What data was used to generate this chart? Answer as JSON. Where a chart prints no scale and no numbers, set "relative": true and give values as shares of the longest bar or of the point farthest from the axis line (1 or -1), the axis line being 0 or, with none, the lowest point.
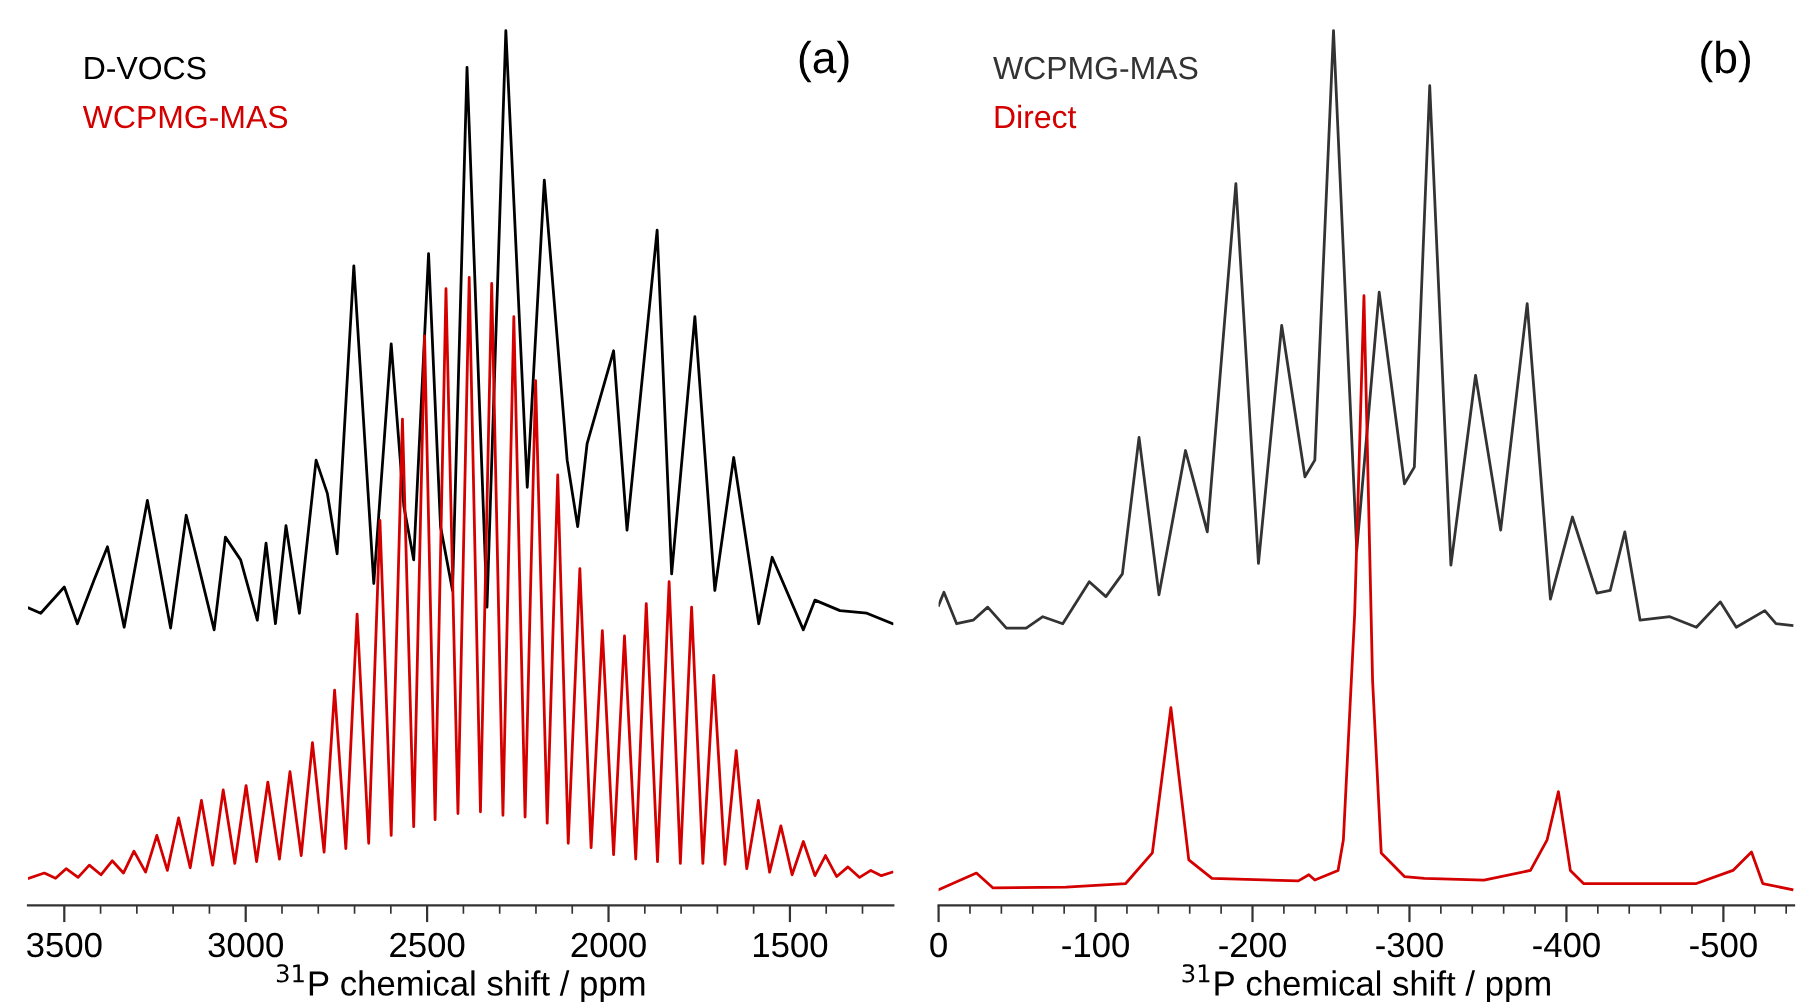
{
  "chart_data": [
    {
      "type": "line",
      "title": "(a)",
      "xlabel": "$^{31}$P chemical shift / ppm",
      "relative": true,
      "legend": "top left",
      "tick_labels": "x",
      "grid": false,
      "marker": "none",
      "line_style": "solid",
      "xlim": [
        3600,
        1215
      ],
      "xticks": [
        3500,
        {
          "value": 3400,
          "label": null
        },
        {
          "value": 3300,
          "label": null
        },
        {
          "value": 3200,
          "label": null
        },
        {
          "value": 3100,
          "label": null
        },
        3000,
        {
          "value": 2900,
          "label": null
        },
        {
          "value": 2800,
          "label": null
        },
        {
          "value": 2700,
          "label": null
        },
        {
          "value": 2600,
          "label": null
        },
        2500,
        {
          "value": 2400,
          "label": null
        },
        {
          "value": 2300,
          "label": null
        },
        {
          "value": 2200,
          "label": null
        },
        {
          "value": 2100,
          "label": null
        },
        2000,
        {
          "value": 1900,
          "label": null
        },
        {
          "value": 1800,
          "label": null
        },
        {
          "value": 1700,
          "label": null
        },
        {
          "value": 1600,
          "label": null
        },
        1500,
        {
          "value": 1400,
          "label": null
        },
        {
          "value": 1300,
          "label": null
        }
      ],
      "series": [
        {
          "name": "D-VOCS",
          "color": "#000000",
          "x": [
            3598,
            3565,
            3500,
            3464,
            3418,
            3381,
            3335,
            3271,
            3207,
            3164,
            3087,
            3056,
            3014,
            2968,
            2944,
            2918,
            2889,
            2852,
            2806,
            2775,
            2748,
            2702,
            2647,
            2599,
            2564,
            2537,
            2496,
            2463,
            2430,
            2390,
            2335,
            2283,
            2224,
            2177,
            2114,
            2085,
            2059,
            1986,
            1949,
            1866,
            1826,
            1762,
            1707,
            1655,
            1586,
            1549,
            1463,
            1431,
            1362,
            1288,
            1217
          ],
          "values": [
            0.34,
            0.334,
            0.364,
            0.322,
            0.372,
            0.41,
            0.318,
            0.463,
            0.317,
            0.446,
            0.315,
            0.421,
            0.395,
            0.326,
            0.414,
            0.322,
            0.434,
            0.334,
            0.509,
            0.471,
            0.402,
            0.731,
            0.368,
            0.642,
            0.456,
            0.395,
            0.745,
            0.433,
            0.36,
            0.958,
            0.341,
            1.0,
            0.478,
            0.829,
            0.509,
            0.433,
            0.528,
            0.634,
            0.429,
            0.772,
            0.379,
            0.673,
            0.36,
            0.512,
            0.322,
            0.398,
            0.315,
            0.349,
            0.337,
            0.334,
            0.322
          ]
        },
        {
          "name": "WCPMG-MAS",
          "color": "#d40000",
          "x": [
            3598,
            3555,
            3524,
            3495,
            3462,
            3431,
            3399,
            3368,
            3337,
            3308,
            3276,
            3245,
            3216,
            3185,
            3153,
            3122,
            3091,
            3062,
            3030,
            2999,
            2970,
            2939,
            2907,
            2878,
            2847,
            2816,
            2784,
            2755,
            2724,
            2693,
            2661,
            2630,
            2599,
            2568,
            2537,
            2507,
            2478,
            2448,
            2415,
            2384,
            2353,
            2322,
            2291,
            2261,
            2230,
            2201,
            2169,
            2140,
            2111,
            2079,
            2048,
            2017,
            1986,
            1956,
            1925,
            1896,
            1865,
            1833,
            1802,
            1771,
            1740,
            1710,
            1679,
            1648,
            1619,
            1587,
            1556,
            1525,
            1494,
            1463,
            1431,
            1402,
            1371,
            1340,
            1308,
            1277,
            1248,
            1218
          ],
          "values": [
            0.031,
            0.037,
            0.031,
            0.042,
            0.032,
            0.046,
            0.035,
            0.051,
            0.037,
            0.062,
            0.038,
            0.08,
            0.04,
            0.1,
            0.043,
            0.12,
            0.046,
            0.132,
            0.048,
            0.137,
            0.05,
            0.141,
            0.053,
            0.153,
            0.057,
            0.186,
            0.061,
            0.246,
            0.065,
            0.333,
            0.071,
            0.44,
            0.08,
            0.556,
            0.09,
            0.651,
            0.098,
            0.705,
            0.105,
            0.718,
            0.107,
            0.711,
            0.103,
            0.673,
            0.101,
            0.6,
            0.094,
            0.492,
            0.071,
            0.385,
            0.066,
            0.314,
            0.058,
            0.308,
            0.053,
            0.345,
            0.05,
            0.37,
            0.048,
            0.341,
            0.048,
            0.263,
            0.047,
            0.177,
            0.042,
            0.12,
            0.038,
            0.091,
            0.035,
            0.073,
            0.034,
            0.057,
            0.033,
            0.044,
            0.032,
            0.04,
            0.034,
            0.038
          ]
        }
      ]
    },
    {
      "type": "line",
      "title": "(b)",
      "xlabel": "$^{31}$P chemical shift / ppm",
      "relative": true,
      "legend": "top left",
      "tick_labels": "x",
      "grid": false,
      "marker": "none",
      "line_style": "solid",
      "xlim": [
        0,
        -545
      ],
      "xticks": [
        0,
        {
          "value": -20,
          "label": null
        },
        {
          "value": -40,
          "label": null
        },
        {
          "value": -60,
          "label": null
        },
        {
          "value": -80,
          "label": null
        },
        {
          "value": -100,
          "label": "-100"
        },
        {
          "value": -120,
          "label": null
        },
        {
          "value": -140,
          "label": null
        },
        {
          "value": -160,
          "label": null
        },
        {
          "value": -180,
          "label": null
        },
        {
          "value": -200,
          "label": "-200"
        },
        {
          "value": -220,
          "label": null
        },
        {
          "value": -240,
          "label": null
        },
        {
          "value": -260,
          "label": null
        },
        {
          "value": -280,
          "label": null
        },
        {
          "value": -300,
          "label": "-300"
        },
        {
          "value": -320,
          "label": null
        },
        {
          "value": -340,
          "label": null
        },
        {
          "value": -360,
          "label": null
        },
        {
          "value": -380,
          "label": null
        },
        {
          "value": -400,
          "label": "-400"
        },
        {
          "value": -420,
          "label": null
        },
        {
          "value": -440,
          "label": null
        },
        {
          "value": -460,
          "label": null
        },
        {
          "value": -480,
          "label": null
        },
        {
          "value": -500,
          "label": "-500"
        },
        {
          "value": -520,
          "label": null
        },
        {
          "value": -540,
          "label": null
        }
      ],
      "series": [
        {
          "name": "WCPMG-MAS",
          "color": "#333333",
          "x": [
            0,
            -3.4,
            -11.5,
            -22,
            -31.3,
            -43.2,
            -55.8,
            -66.4,
            -79.1,
            -96,
            -106.6,
            -117.1,
            -127.7,
            -140.4,
            -157.3,
            -171.2,
            -189.4,
            -203.8,
            -218.6,
            -233.4,
            -239.7,
            -251.6,
            -266.4,
            -280.7,
            -296.8,
            -303.1,
            -312.9,
            -326.4,
            -342.1,
            -358.1,
            -375,
            -389.8,
            -403.8,
            -419.4,
            -427.9,
            -437.2,
            -446.9,
            -465.9,
            -482.8,
            -498,
            -508.2,
            -526.4,
            -533.5,
            -543.7
          ],
          "values": [
            0.343,
            0.358,
            0.322,
            0.326,
            0.341,
            0.317,
            0.317,
            0.33,
            0.322,
            0.37,
            0.353,
            0.379,
            0.535,
            0.355,
            0.52,
            0.427,
            0.825,
            0.391,
            0.663,
            0.49,
            0.509,
            1.0,
            0.406,
            0.701,
            0.482,
            0.501,
            0.937,
            0.389,
            0.606,
            0.429,
            0.688,
            0.35,
            0.444,
            0.357,
            0.36,
            0.427,
            0.326,
            0.33,
            0.318,
            0.347,
            0.318,
            0.337,
            0.322,
            0.32
          ]
        },
        {
          "name": "Direct",
          "color": "#d40000",
          "x": [
            0,
            -24.1,
            -34.7,
            -81.2,
            -119.2,
            -136.2,
            -148,
            -159.4,
            -174.2,
            -229.2,
            -235.9,
            -239.7,
            -254.5,
            -257.9,
            -265.1,
            -271,
            -276.5,
            -282,
            -296.8,
            -309.5,
            -347.5,
            -377.1,
            -387.7,
            -394.9,
            -402.5,
            -410.9,
            -482.8,
            -506.1,
            -517.9,
            -525.1,
            -543.7
          ],
          "values": [
            0.018,
            0.037,
            0.02,
            0.021,
            0.025,
            0.06,
            0.226,
            0.052,
            0.031,
            0.028,
            0.035,
            0.029,
            0.04,
            0.075,
            0.334,
            0.697,
            0.257,
            0.06,
            0.033,
            0.031,
            0.029,
            0.04,
            0.075,
            0.13,
            0.04,
            0.025,
            0.025,
            0.04,
            0.061,
            0.025,
            0.018
          ]
        }
      ]
    }
  ]
}
